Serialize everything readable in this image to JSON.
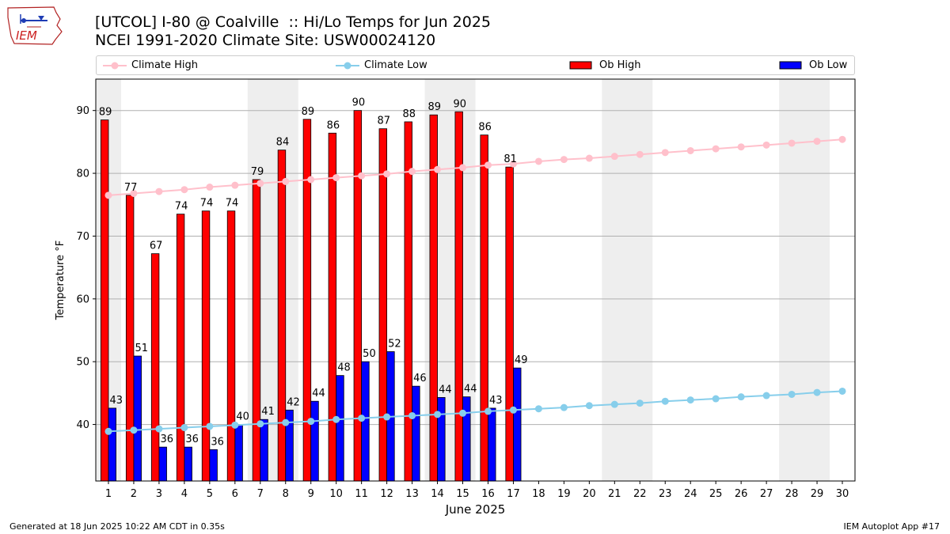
{
  "header": {
    "logo_text": "IEM",
    "title": "[UTCOL] I-80 @ Coalville  :: Hi/Lo Temps for Jun 2025",
    "subtitle": "NCEI 1991-2020 Climate Site: USW00024120"
  },
  "legend": {
    "climate_high": "Climate High",
    "climate_low": "Climate Low",
    "ob_high": "Ob High",
    "ob_low": "Ob Low"
  },
  "footer": {
    "generated": "Generated at 18 Jun 2025 10:22 AM CDT in 0.35s",
    "app": "IEM Autoplot App #17"
  },
  "colors": {
    "ob_high": "#ff0000",
    "ob_low": "#0000ff",
    "climate_high": "#ffc0cb",
    "climate_low": "#87ceeb",
    "weekend_band": "#eeeeee",
    "grid": "#b0b0b0"
  },
  "chart_data": {
    "type": "bar",
    "xlabel": "June 2025",
    "ylabel": "Temperature °F",
    "xlim": [
      0.5,
      30.5
    ],
    "ylim": [
      31,
      95
    ],
    "yticks": [
      40,
      50,
      60,
      70,
      80,
      90
    ],
    "grid": "horizontal",
    "legend_placement": "top",
    "days": [
      1,
      2,
      3,
      4,
      5,
      6,
      7,
      8,
      9,
      10,
      11,
      12,
      13,
      14,
      15,
      16,
      17,
      18,
      19,
      20,
      21,
      22,
      23,
      24,
      25,
      26,
      27,
      28,
      29,
      30
    ],
    "weekend_bands": [
      [
        0.5,
        1.5
      ],
      [
        6.5,
        8.5
      ],
      [
        13.5,
        15.5
      ],
      [
        20.5,
        22.5
      ],
      [
        27.5,
        29.5
      ]
    ],
    "ob_high": [
      89,
      77,
      67,
      74,
      74,
      74,
      79,
      84,
      89,
      86,
      90,
      87,
      88,
      89,
      90,
      86,
      81
    ],
    "ob_low": [
      43,
      51,
      36,
      36,
      36,
      40,
      41,
      42,
      44,
      48,
      50,
      52,
      46,
      44,
      44,
      43,
      49
    ],
    "ob_high_values": [
      88.5,
      76.5,
      67.2,
      73.5,
      74.0,
      74.0,
      79.0,
      83.7,
      88.6,
      86.4,
      90.0,
      87.1,
      88.2,
      89.3,
      89.8,
      86.1,
      81.0
    ],
    "ob_low_values": [
      42.6,
      50.9,
      36.4,
      36.4,
      36.0,
      40.0,
      40.8,
      42.3,
      43.7,
      47.8,
      50.0,
      51.6,
      46.1,
      44.3,
      44.4,
      42.6,
      49.0
    ],
    "climate_high": [
      76.5,
      76.8,
      77.1,
      77.4,
      77.8,
      78.1,
      78.4,
      78.7,
      79.0,
      79.3,
      79.6,
      79.9,
      80.3,
      80.6,
      80.9,
      81.3,
      81.5,
      81.9,
      82.2,
      82.4,
      82.7,
      83.0,
      83.3,
      83.6,
      83.9,
      84.2,
      84.5,
      84.8,
      85.1,
      85.4
    ],
    "climate_low": [
      38.9,
      39.1,
      39.3,
      39.5,
      39.7,
      39.9,
      40.1,
      40.3,
      40.5,
      40.8,
      41.0,
      41.2,
      41.4,
      41.6,
      41.8,
      42.1,
      42.3,
      42.5,
      42.7,
      43.0,
      43.2,
      43.4,
      43.7,
      43.9,
      44.1,
      44.4,
      44.6,
      44.8,
      45.1,
      45.3
    ]
  }
}
